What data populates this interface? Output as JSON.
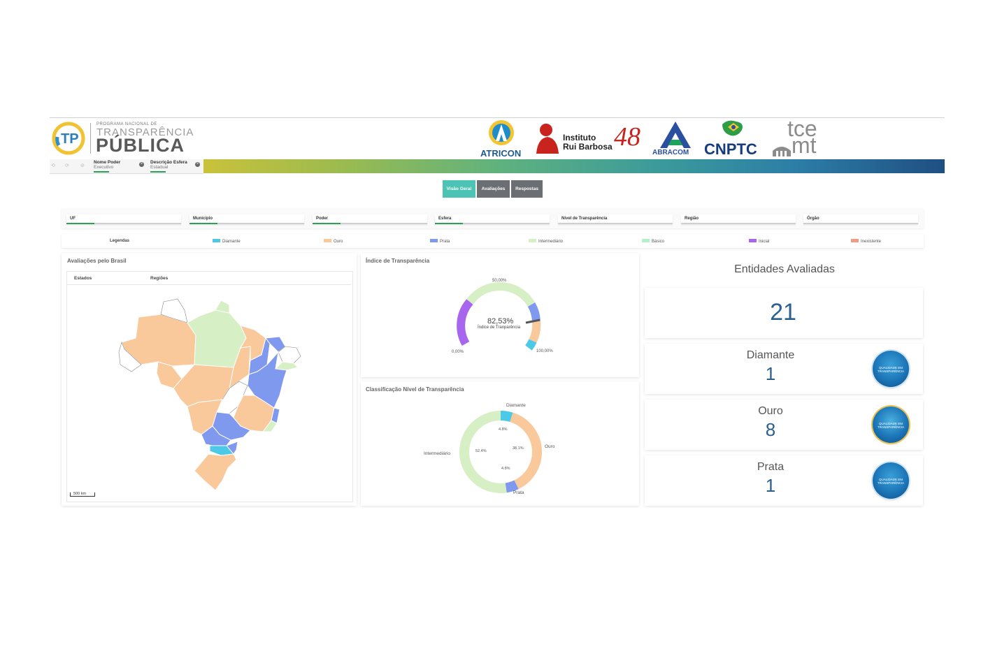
{
  "header": {
    "program_small": "PROGRAMA NACIONAL DE",
    "program_mid": "TRANSPARÊNCIA",
    "program_big": "PÚBLICA",
    "partners": {
      "atricon": "ATRICON",
      "rui_line1": "Instituto",
      "rui_line2": "Rui Barbosa",
      "rui_years": "48",
      "abracom": "ABRACOM",
      "cnptc": "CNPTC",
      "tce_top": "tce",
      "tce_bottom": "mt"
    },
    "chips": [
      {
        "key": "Nome Poder",
        "value": "Executivo"
      },
      {
        "key": "Descrição Esfera",
        "value": "Estadual"
      }
    ]
  },
  "tabs": [
    {
      "label": "Visão Geral",
      "color": "#4cc3b5"
    },
    {
      "label": "Avaliações",
      "color": "#6b6e72"
    },
    {
      "label": "Respostas",
      "color": "#6b6e72"
    }
  ],
  "filters": [
    "UF",
    "Município",
    "Poder",
    "Esfera",
    "Nível de Transparência",
    "Região",
    "Órgão"
  ],
  "legend": {
    "title": "Legendas",
    "items": [
      {
        "label": "Diamante",
        "color": "#4dc9e8"
      },
      {
        "label": "Ouro",
        "color": "#f9c99c"
      },
      {
        "label": "Prata",
        "color": "#7f99ef"
      },
      {
        "label": "Intermediário",
        "color": "#d7efc4"
      },
      {
        "label": "Básico",
        "color": "#b6f0c8"
      },
      {
        "label": "Inicial",
        "color": "#a866ef"
      },
      {
        "label": "Inexistente",
        "color": "#f39a84"
      }
    ]
  },
  "map_panel": {
    "title": "Avaliações pelo Brasil",
    "tab_states": "Estados",
    "tab_regions": "Regiões",
    "scale": "500 km"
  },
  "gauge_panel": {
    "title": "Índice de Transparência",
    "value_label": "82,53%",
    "value_caption": "Índice de Tranparência",
    "value": 82.53,
    "min_label": "0,00%",
    "mid_label": "50,00%",
    "max_label": "100,00%",
    "colors": {
      "inicial": "#a866ef",
      "intermediario": "#d7efc4",
      "prata": "#7f99ef",
      "ouro": "#f9c99c",
      "diamante": "#4dc9e8"
    }
  },
  "donut_panel": {
    "title": "Classificação Nível de Transparência"
  },
  "chart_data": {
    "type": "pie",
    "title": "Classificação Nível de Transparência",
    "categories": [
      "Diamante",
      "Ouro",
      "Prata",
      "Intermediário"
    ],
    "values": [
      4.8,
      38.1,
      4.8,
      52.4
    ],
    "value_labels": [
      "4.8%",
      "38.1%",
      "4.8%",
      "52.4%"
    ],
    "colors": [
      "#4dc9e8",
      "#f9c99c",
      "#7f99ef",
      "#d7efc4"
    ]
  },
  "summary": {
    "title": "Entidades Avaliadas",
    "total": "21",
    "cards": [
      {
        "label": "Diamante",
        "count": "1",
        "seal_text": "QUALIDADE EM TRANSPARÊNCIA"
      },
      {
        "label": "Ouro",
        "count": "8",
        "seal_text": "QUALIDADE EM TRANSPARÊNCIA"
      },
      {
        "label": "Prata",
        "count": "1",
        "seal_text": "QUALIDADE EM TRANSPARÊNCIA"
      }
    ]
  }
}
